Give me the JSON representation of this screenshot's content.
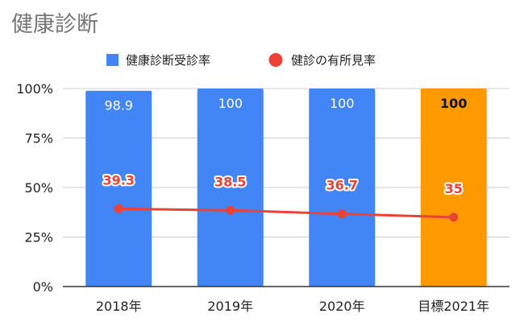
{
  "chart_data": {
    "type": "bar",
    "title": "健康診断",
    "categories": [
      "2018年",
      "2019年",
      "2020年",
      "目標2021年"
    ],
    "ylim": [
      0,
      100
    ],
    "yticks": [
      "0%",
      "25%",
      "50%",
      "75%",
      "100%"
    ],
    "ytick_values": [
      0,
      25,
      50,
      75,
      100
    ],
    "grid": true,
    "legend_position": "top",
    "series": [
      {
        "name": "健康診断受診率",
        "kind": "bar",
        "color": "#4285f4",
        "highlight_color": "#ff9900",
        "highlight_index": 3,
        "values": [
          98.9,
          100,
          100,
          100
        ],
        "labels": [
          "98.9",
          "100",
          "100",
          "100"
        ]
      },
      {
        "name": "健診の有所見率",
        "kind": "line",
        "color": "#ea4335",
        "values": [
          39.3,
          38.5,
          36.7,
          35
        ],
        "labels": [
          "39.3",
          "38.5",
          "36.7",
          "35"
        ]
      }
    ]
  }
}
